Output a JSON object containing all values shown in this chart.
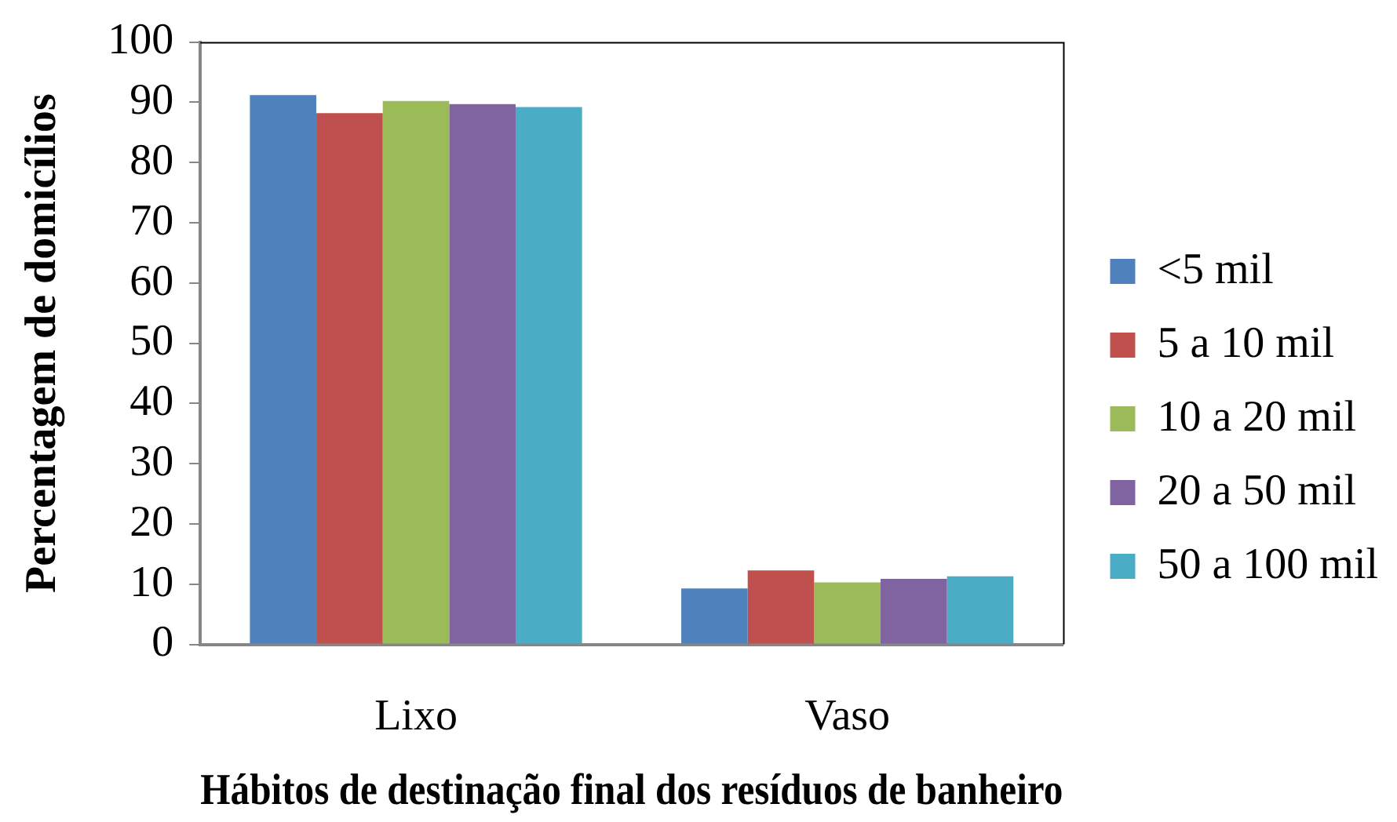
{
  "chart_data": {
    "type": "bar",
    "xlabel": "Hábitos de destinação final dos resíduos de banheiro",
    "ylabel": "Percentagem de domicílios",
    "categories": [
      "Lixo",
      "Vaso"
    ],
    "series": [
      {
        "name": "<5 mil",
        "color": "#4f81bd",
        "values": [
          91.2,
          9.3
        ]
      },
      {
        "name": "5 a 10 mil",
        "color": "#c0504d",
        "values": [
          88.2,
          12.3
        ]
      },
      {
        "name": "10 a 20 mil",
        "color": "#9bbb59",
        "values": [
          90.2,
          10.3
        ]
      },
      {
        "name": "20 a 50 mil",
        "color": "#8064a2",
        "values": [
          89.7,
          10.9
        ]
      },
      {
        "name": "50 a 100 mil",
        "color": "#4bacc6",
        "values": [
          89.2,
          11.3
        ]
      }
    ],
    "ylim": [
      0,
      100
    ],
    "yticks": [
      0,
      10,
      20,
      30,
      40,
      50,
      60,
      70,
      80,
      90,
      100
    ],
    "legend": "right"
  }
}
